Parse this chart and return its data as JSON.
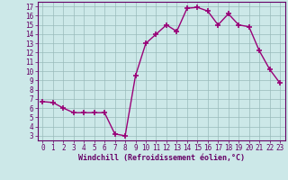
{
  "x": [
    0,
    1,
    2,
    3,
    4,
    5,
    6,
    7,
    8,
    9,
    10,
    11,
    12,
    13,
    14,
    15,
    16,
    17,
    18,
    19,
    20,
    21,
    22,
    23
  ],
  "y": [
    6.7,
    6.6,
    6.0,
    5.5,
    5.5,
    5.5,
    5.5,
    3.2,
    3.0,
    9.5,
    13.0,
    14.0,
    15.0,
    14.3,
    16.8,
    16.9,
    16.5,
    15.0,
    16.2,
    15.0,
    14.8,
    12.2,
    10.2,
    8.7
  ],
  "line_color": "#990077",
  "marker": "+",
  "marker_size": 4,
  "marker_lw": 1.2,
  "bg_color": "#cce8e8",
  "grid_color": "#99bbbb",
  "xlabel": "Windchill (Refroidissement éolien,°C)",
  "ylabel_ticks": [
    3,
    4,
    5,
    6,
    7,
    8,
    9,
    10,
    11,
    12,
    13,
    14,
    15,
    16,
    17
  ],
  "xlabel_ticks": [
    0,
    1,
    2,
    3,
    4,
    5,
    6,
    7,
    8,
    9,
    10,
    11,
    12,
    13,
    14,
    15,
    16,
    17,
    18,
    19,
    20,
    21,
    22,
    23
  ],
  "ylim": [
    2.5,
    17.5
  ],
  "xlim": [
    -0.5,
    23.5
  ],
  "axis_color": "#660066",
  "label_fontsize": 6.0,
  "tick_fontsize": 5.5,
  "line_width": 1.0
}
